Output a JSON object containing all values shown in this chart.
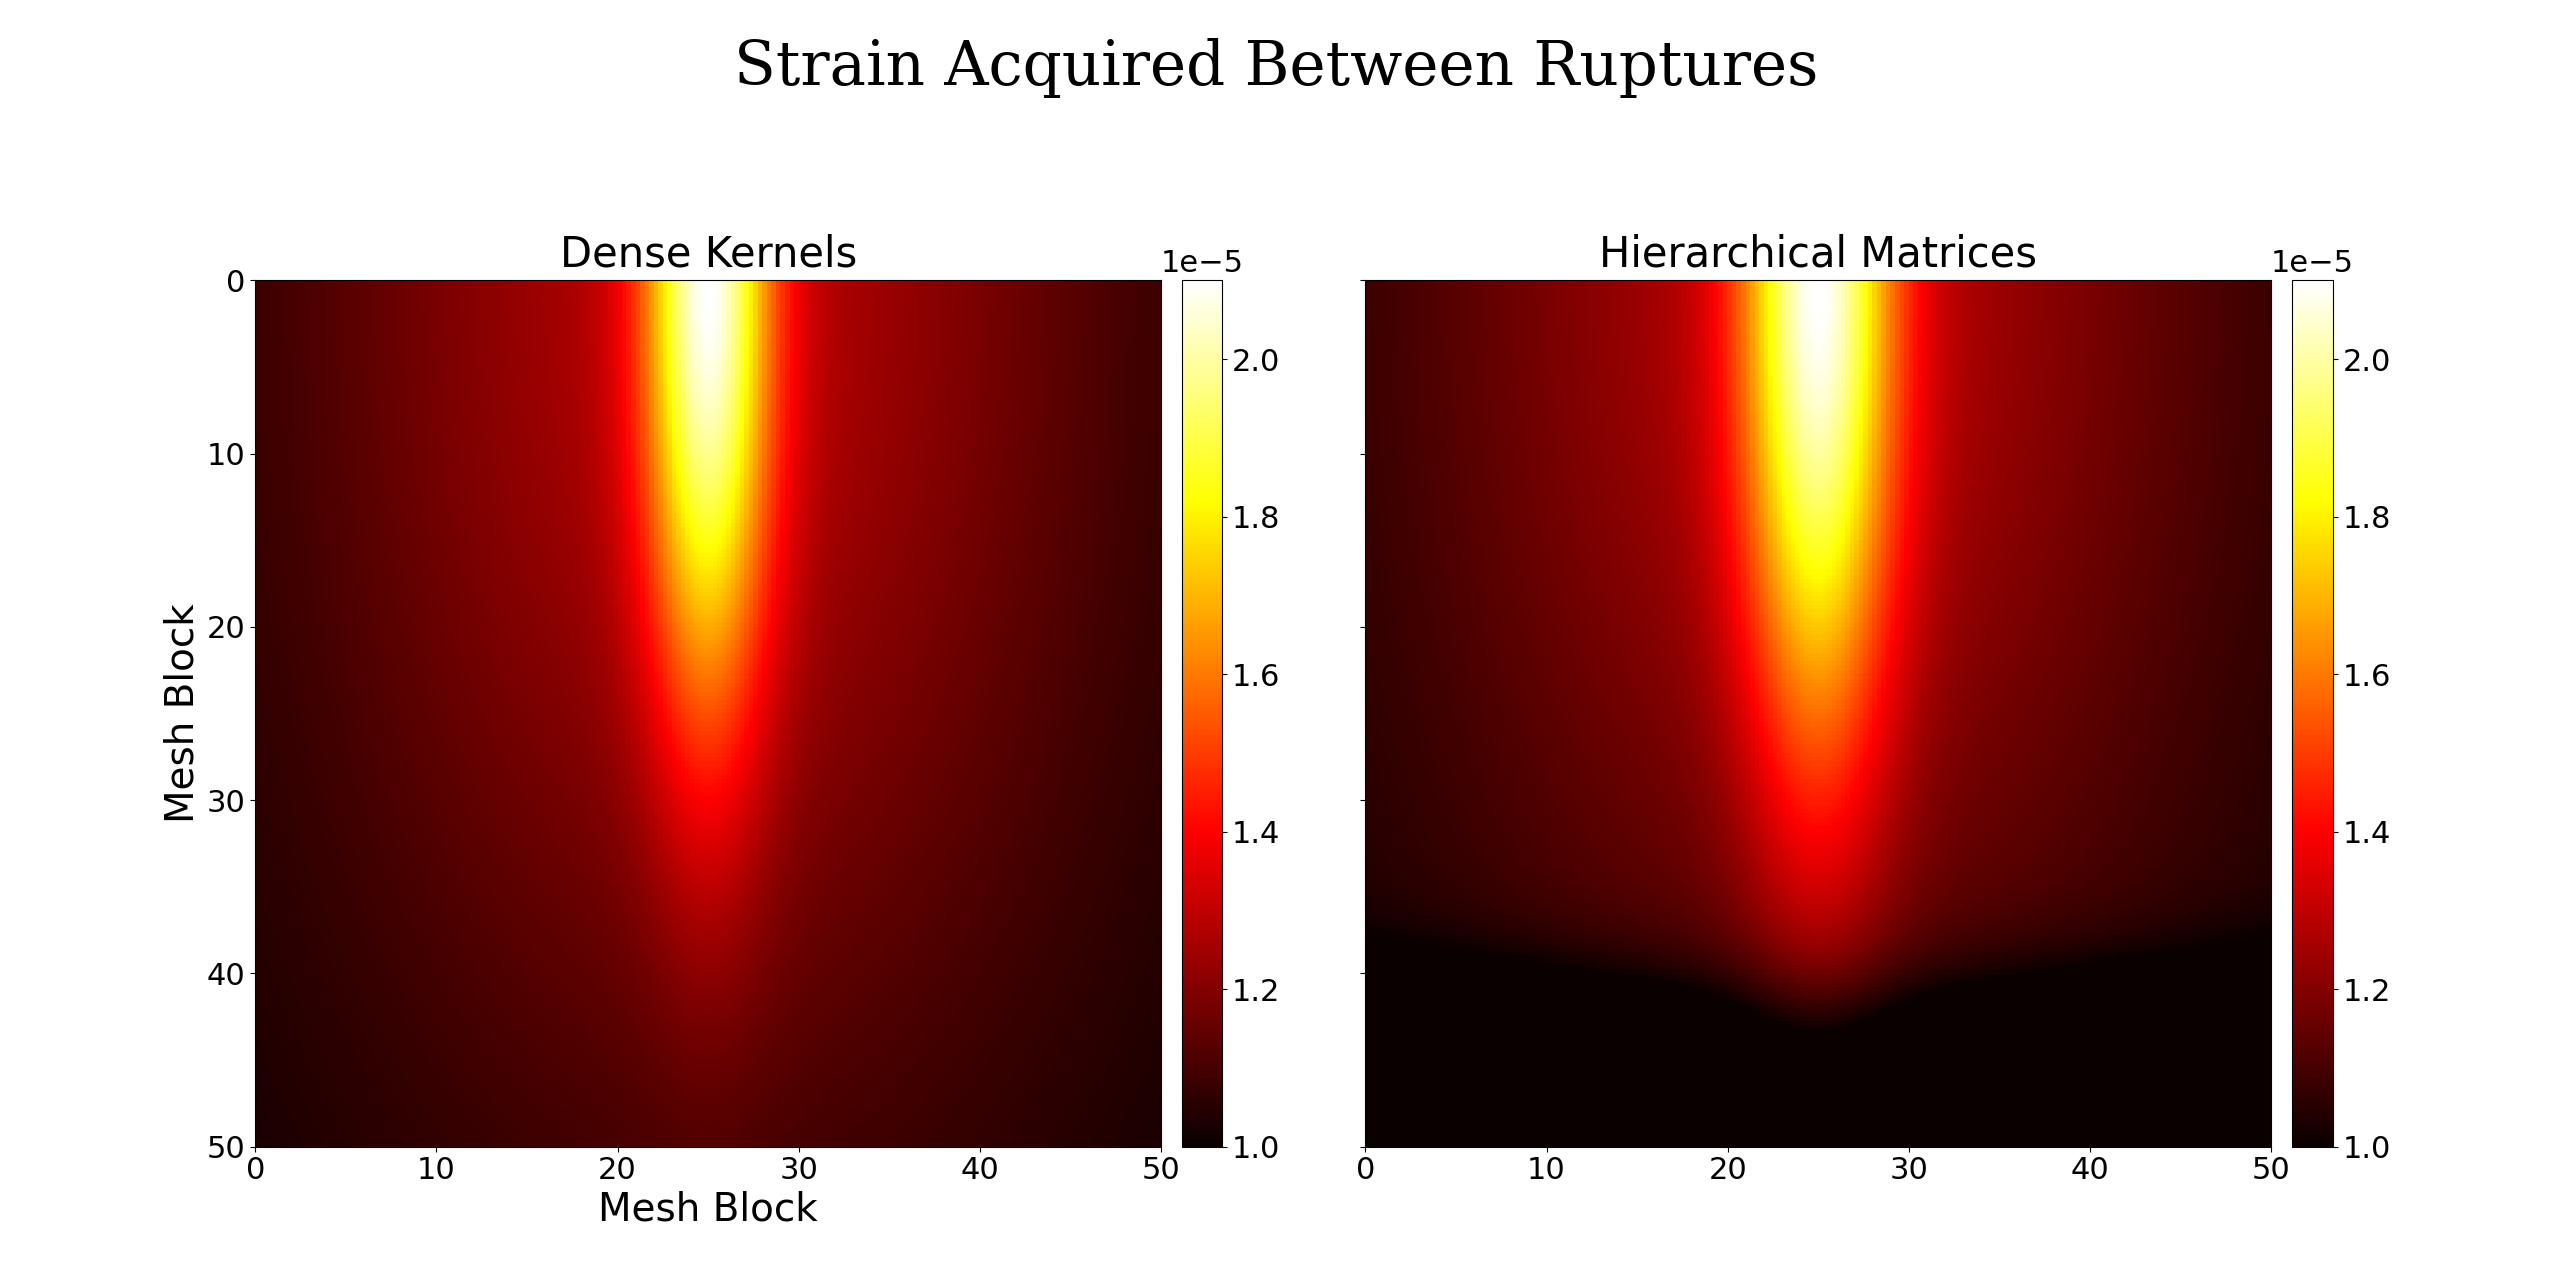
{
  "title": "Strain Acquired Between Ruptures",
  "subplot1_title": "Dense Kernels",
  "subplot2_title": "Hierarchical Matrices",
  "xlabel": "Mesh Block",
  "ylabel": "Mesh Block",
  "vmin": 1e-05,
  "vmax": 2.1e-05,
  "colorbar_ticks": [
    1.0,
    1.2,
    1.4,
    1.6,
    1.8,
    2.0
  ],
  "n": 200,
  "cmap": "hot",
  "figsize": [
    25.52,
    12.74
  ],
  "dpi": 100,
  "title_fontsize": 44,
  "subtitle_fontsize": 30,
  "tick_fontsize": 22,
  "label_fontsize": 28,
  "colorbar_fontsize": 22,
  "background_color": "#ffffff"
}
